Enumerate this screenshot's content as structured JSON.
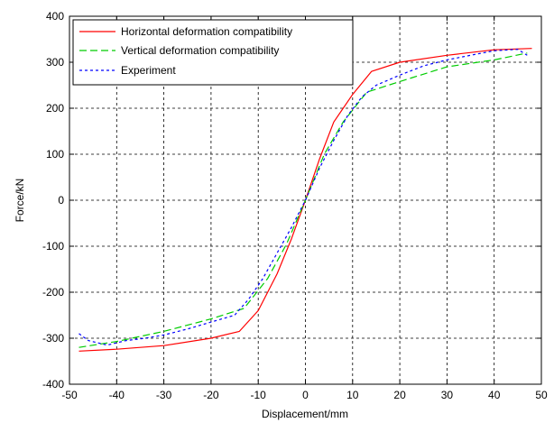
{
  "chart_data": {
    "type": "line",
    "title": "",
    "xlabel": "Displacement/mm",
    "ylabel": "Force/kN",
    "xlim": [
      -50,
      50
    ],
    "ylim": [
      -400,
      400
    ],
    "xticks": [
      -50,
      -40,
      -30,
      -20,
      -10,
      0,
      10,
      20,
      30,
      40,
      50
    ],
    "yticks": [
      -400,
      -300,
      -200,
      -100,
      0,
      100,
      200,
      300,
      400
    ],
    "xtick_labels": [
      "-50",
      "-40",
      "-30",
      "-20",
      "-10",
      "0",
      "10",
      "20",
      "30",
      "40",
      "50"
    ],
    "ytick_labels": [
      "-400",
      "-300",
      "-200",
      "-100",
      "0",
      "100",
      "200",
      "300",
      "400"
    ],
    "grid": true,
    "legend_position": "top-left",
    "series": [
      {
        "name": "Horizontal deformation compatibility",
        "color": "#ff0000",
        "dash": "solid",
        "x": [
          -48,
          -40,
          -30,
          -20,
          -14,
          -10,
          -6,
          -3,
          0,
          3,
          6,
          10,
          14,
          20,
          30,
          40,
          48
        ],
        "y": [
          -328,
          -324,
          -316,
          -300,
          -285,
          -240,
          -160,
          -85,
          0,
          90,
          170,
          230,
          280,
          300,
          315,
          327,
          330
        ]
      },
      {
        "name": "Vertical deformation compatibility",
        "color": "#00cc00",
        "dash": "dashed",
        "x": [
          -48,
          -40,
          -30,
          -20,
          -13,
          -8,
          -4,
          0,
          4,
          8,
          13,
          20,
          30,
          40,
          47
        ],
        "y": [
          -320,
          -307,
          -285,
          -258,
          -235,
          -170,
          -95,
          0,
          100,
          170,
          235,
          258,
          290,
          305,
          320
        ]
      },
      {
        "name": "Experiment",
        "color": "#0000ff",
        "dash": "dotted",
        "x": [
          -48,
          -46,
          -42,
          -38,
          -34,
          -30,
          -25,
          -20,
          -15,
          -12,
          -9,
          -6,
          -3,
          0,
          3,
          6,
          9,
          12,
          15,
          20,
          25,
          30,
          35,
          40,
          45,
          47
        ],
        "y": [
          -290,
          -305,
          -315,
          -305,
          -300,
          -293,
          -280,
          -265,
          -250,
          -215,
          -170,
          -115,
          -60,
          0,
          70,
          130,
          185,
          225,
          250,
          272,
          292,
          305,
          315,
          325,
          328,
          315
        ]
      }
    ]
  }
}
